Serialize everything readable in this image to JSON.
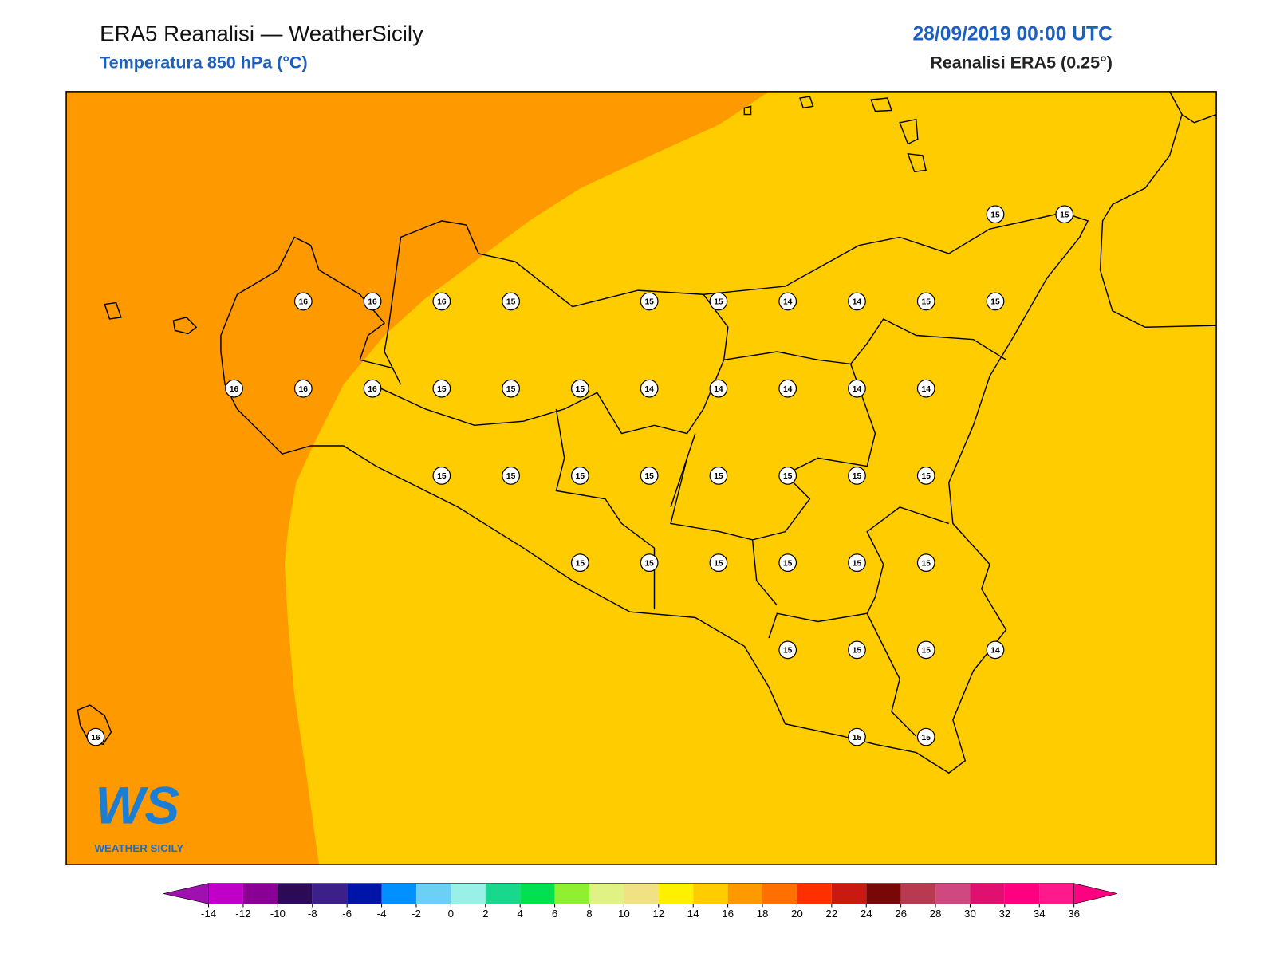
{
  "header": {
    "title": "ERA5 Reanalisi — WeatherSicily",
    "subtitle": "Temperatura 850 hPa (°C)",
    "date": "28/09/2019 00:00 UTC",
    "source": "Reanalisi ERA5 (0.25°)"
  },
  "stations": [
    15,
    15,
    16,
    16,
    16,
    15,
    15,
    15,
    14,
    14,
    15,
    15,
    16,
    16,
    16,
    15,
    15,
    15,
    14,
    14,
    14,
    14,
    14,
    15,
    15,
    15,
    15,
    15,
    15,
    15,
    15,
    15,
    15,
    15,
    15,
    15,
    15,
    15,
    15,
    15,
    14,
    16,
    15,
    15
  ],
  "colorbar": {
    "ticks": [
      -14,
      -12,
      -10,
      -8,
      -6,
      -4,
      -2,
      0,
      2,
      4,
      6,
      8,
      10,
      12,
      14,
      16,
      18,
      20,
      22,
      24,
      26,
      28,
      30,
      32,
      34,
      36
    ],
    "colors": [
      "#c000c8",
      "#8a0094",
      "#2c0a58",
      "#3a2088",
      "#0014a8",
      "#0090ff",
      "#6ccff5",
      "#98f0e6",
      "#18d88e",
      "#00e050",
      "#8ef030",
      "#dff283",
      "#f0e284",
      "#fff000",
      "#ffcc00",
      "#ff9900",
      "#ff7000",
      "#ff3000",
      "#c81a10",
      "#780808",
      "#b83a50",
      "#d04880",
      "#e01070",
      "#ff0080",
      "#ff1a8c"
    ],
    "extend_colors": [
      "#a010b0",
      "#ff0080"
    ]
  },
  "logo": {
    "mark": "WS",
    "name": "WEATHER SICILY"
  }
}
